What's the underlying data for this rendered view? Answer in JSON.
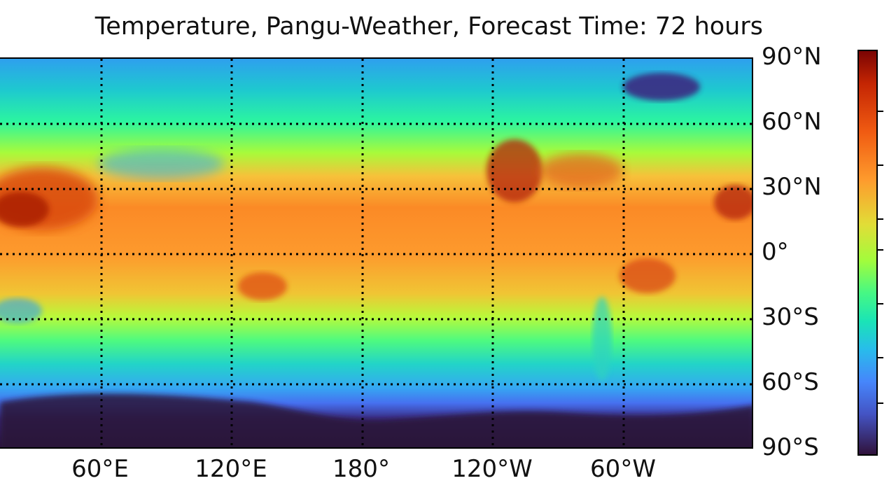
{
  "title": "Temperature, Pangu-Weather, Forecast Time: 72 hours",
  "map": {
    "projection": "PlateCarree",
    "field": "Temperature",
    "model": "Pangu-Weather",
    "forecast_time_hours": 72,
    "colormap": "turbo",
    "gridlines": "dotted black"
  },
  "lat_labels": [
    "90°N",
    "60°N",
    "30°N",
    "0°",
    "30°S",
    "60°S",
    "90°S"
  ],
  "lon_labels": [
    "60°E",
    "120°E",
    "180°",
    "120°W",
    "60°W"
  ],
  "colorbar": {
    "orientation": "vertical",
    "tick_count": 7,
    "tick_labels_visible": false
  },
  "colors": {
    "hot": "#7a0403",
    "warm": "#fe9b2d",
    "mild": "#a2fc3c",
    "cool": "#28bceb",
    "cold": "#30123b"
  }
}
